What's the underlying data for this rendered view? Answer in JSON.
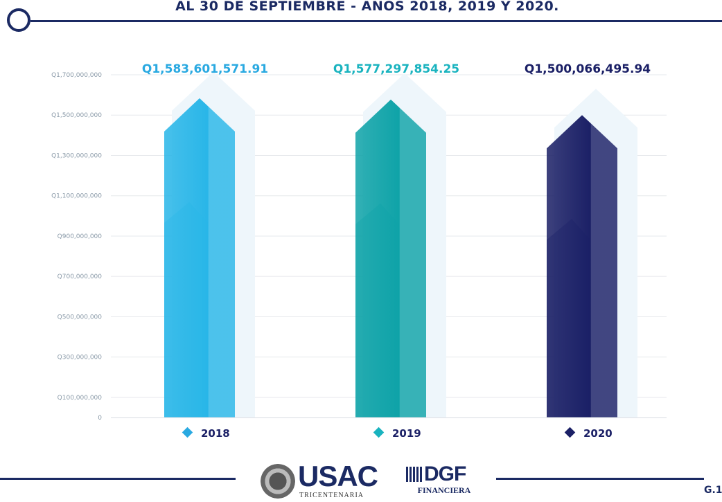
{
  "header": {
    "title": "AL 30 DE SEPTIEMBRE - AÑOS 2018, 2019 Y 2020."
  },
  "chart_data": {
    "type": "bar",
    "categories": [
      "2018",
      "2019",
      "2020"
    ],
    "values": [
      1583601571.91,
      1577297854.25,
      1500066495.94
    ],
    "value_labels": [
      "Q1,583,601,571.91",
      "Q1,577,297,854.25",
      "Q1,500,066,495.94"
    ],
    "colors": [
      "#29b6e8",
      "#0fa3a8",
      "#1b2066"
    ],
    "label_colors": [
      "#29a9e1",
      "#19b3bf",
      "#1b2066"
    ],
    "y_ticks": [
      0,
      100000000,
      300000000,
      500000000,
      700000000,
      900000000,
      1100000000,
      1300000000,
      1500000000,
      1700000000
    ],
    "y_tick_labels": [
      "0",
      "Q100,000,000",
      "Q300,000,000",
      "Q500,000,000",
      "Q700,000,000",
      "Q900,000,000",
      "Q1,100,000,000",
      "Q1,300,000,000",
      "Q1,500,000,000",
      "Q1,700,000,000"
    ],
    "ylim": [
      0,
      1700000000
    ],
    "grid": true,
    "legend": "bottom",
    "title": "",
    "xlabel": "",
    "ylabel": ""
  },
  "footer": {
    "usac_logo_text": "USAC",
    "usac_logo_subtext": "TRICENTENARIA",
    "dgf_logo_text": "DGF",
    "dgf_logo_subtext": "FINANCIERA",
    "page_code": "G.1"
  }
}
